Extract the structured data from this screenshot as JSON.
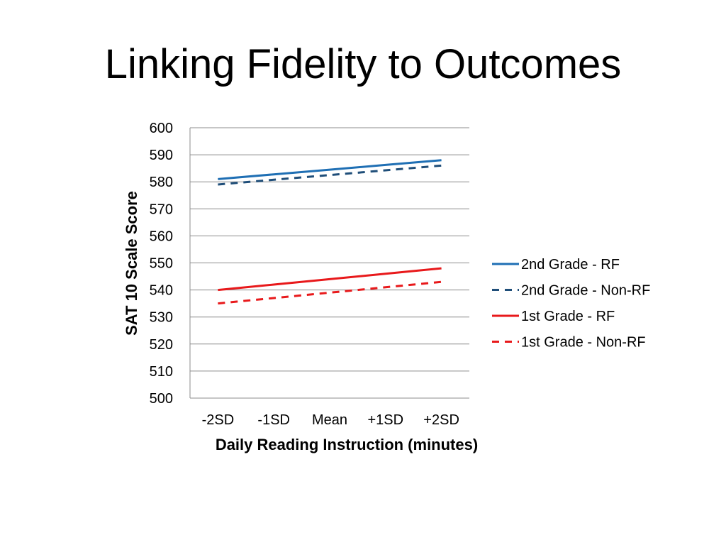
{
  "slide": {
    "title": "Linking Fidelity to Outcomes"
  },
  "chart_data": {
    "type": "line",
    "categories": [
      "-2SD",
      "-1SD",
      "Mean",
      "+1SD",
      "+2SD"
    ],
    "xlabel": "Daily Reading Instruction (minutes)",
    "ylabel": "SAT 10 Scale Score",
    "ylim": [
      500,
      600
    ],
    "yticks": [
      500,
      510,
      520,
      530,
      540,
      550,
      560,
      570,
      580,
      590,
      600
    ],
    "grid": true,
    "legend_position": "right",
    "series": [
      {
        "name": "2nd Grade - RF",
        "values": [
          581,
          582.75,
          584.5,
          586.25,
          588
        ],
        "color": "#1f6fb4",
        "style": "solid"
      },
      {
        "name": "2nd Grade - Non-RF",
        "values": [
          579,
          580.75,
          582.5,
          584.25,
          586
        ],
        "color": "#1f4e79",
        "style": "dashed"
      },
      {
        "name": "1st Grade - RF",
        "values": [
          540,
          542,
          544,
          546,
          548
        ],
        "color": "#e8191b",
        "style": "solid"
      },
      {
        "name": "1st Grade - Non-RF",
        "values": [
          535,
          537,
          539,
          541,
          543
        ],
        "color": "#e8191b",
        "style": "dashed"
      }
    ]
  }
}
